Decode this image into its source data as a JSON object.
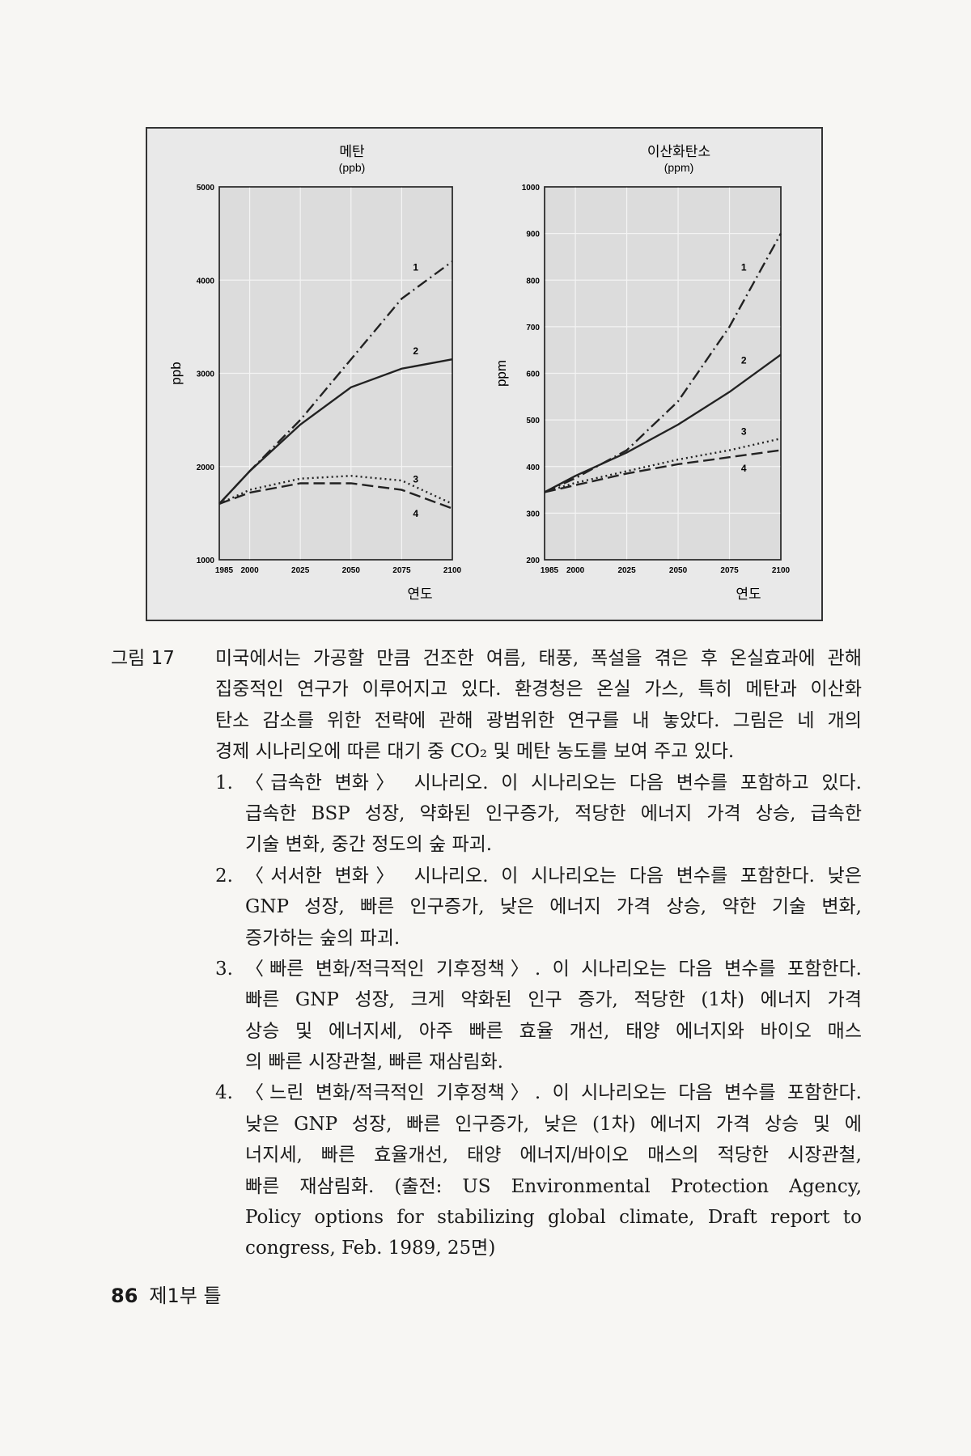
{
  "chart_data": [
    {
      "type": "line",
      "title": "메탄",
      "subtitle": "(ppb)",
      "ylabel": "ppb",
      "xlabel": "연도",
      "x": [
        1985,
        2000,
        2025,
        2050,
        2075,
        2100
      ],
      "xlim": [
        1985,
        2100
      ],
      "xticks": [
        1985,
        2000,
        2025,
        2050,
        2075,
        2100
      ],
      "ylim": [
        1000,
        5000
      ],
      "yticks": [
        1000,
        2000,
        3000,
        4000,
        5000
      ],
      "grid": true,
      "series": [
        {
          "name": "1",
          "color": "#222222",
          "dash": "dashdot",
          "values": [
            1600,
            1950,
            2500,
            3150,
            3800,
            4200
          ]
        },
        {
          "name": "2",
          "color": "#222222",
          "dash": "solid",
          "values": [
            1600,
            1950,
            2450,
            2850,
            3050,
            3150
          ]
        },
        {
          "name": "3",
          "color": "#222222",
          "dash": "dotted",
          "values": [
            1600,
            1750,
            1870,
            1900,
            1850,
            1600
          ]
        },
        {
          "name": "4",
          "color": "#222222",
          "dash": "dashed",
          "values": [
            1600,
            1720,
            1820,
            1820,
            1750,
            1550
          ]
        }
      ]
    },
    {
      "type": "line",
      "title": "이산화탄소",
      "subtitle": "(ppm)",
      "ylabel": "ppm",
      "xlabel": "연도",
      "x": [
        1985,
        2000,
        2025,
        2050,
        2075,
        2100
      ],
      "xlim": [
        1985,
        2100
      ],
      "xticks": [
        1985,
        2000,
        2025,
        2050,
        2075,
        2100
      ],
      "ylim": [
        200,
        1000
      ],
      "yticks": [
        200,
        300,
        400,
        500,
        600,
        700,
        800,
        900,
        1000
      ],
      "grid": true,
      "series": [
        {
          "name": "1",
          "color": "#222222",
          "dash": "dashdot",
          "values": [
            345,
            375,
            435,
            540,
            700,
            900
          ]
        },
        {
          "name": "2",
          "color": "#222222",
          "dash": "solid",
          "values": [
            345,
            380,
            430,
            490,
            560,
            640
          ]
        },
        {
          "name": "3",
          "color": "#222222",
          "dash": "dotted",
          "values": [
            345,
            365,
            390,
            415,
            435,
            460
          ]
        },
        {
          "name": "4",
          "color": "#222222",
          "dash": "dashed",
          "values": [
            345,
            360,
            385,
            405,
            420,
            435
          ]
        }
      ]
    }
  ],
  "caption": {
    "label": "그림 17",
    "intro": [
      "미국에서는 가공할 만큼 건조한 여름, 태풍, 폭설을 겪은 후 온실효과에 관해",
      "집중적인 연구가 이루어지고 있다. 환경청은 온실 가스, 특히 메탄과 이산화",
      "탄소 감소를 위한 전략에 관해 광범위한 연구를 내 놓았다. 그림은 네 개의",
      "경제 시나리오에 따른 대기 중 CO₂ 및 메탄 농도를 보여 주고 있다."
    ],
    "items": [
      {
        "number": "1.",
        "lines": [
          "〈급속한 변화〉 시나리오. 이 시나리오는 다음 변수를 포함하고 있다.",
          "급속한 BSP 성장, 약화된 인구증가, 적당한 에너지 가격 상승, 급속한",
          "기술 변화, 중간 정도의 숲 파괴."
        ]
      },
      {
        "number": "2.",
        "lines": [
          "〈서서한 변화〉 시나리오. 이 시나리오는 다음 변수를 포함한다. 낮은",
          "GNP 성장, 빠른 인구증가, 낮은 에너지 가격 상승, 약한 기술 변화,",
          "증가하는 숲의 파괴."
        ]
      },
      {
        "number": "3.",
        "lines": [
          "〈빠른 변화/적극적인 기후정책〉. 이 시나리오는 다음 변수를 포함한다.",
          "빠른 GNP 성장, 크게 약화된 인구 증가, 적당한 (1차) 에너지 가격",
          "상승 및 에너지세, 아주 빠른 효율 개선, 태양 에너지와 바이오 매스",
          "의 빠른 시장관철, 빠른 재삼림화."
        ]
      },
      {
        "number": "4.",
        "lines": [
          "〈느린 변화/적극적인 기후정책〉. 이 시나리오는 다음 변수를 포함한다.",
          "낮은 GNP 성장, 빠른 인구증가, 낮은 (1차) 에너지 가격 상승 및 에",
          "너지세, 빠른 효율개선, 태양 에너지/바이오 매스의 적당한 시장관철,",
          "빠른 재삼림화. (출전: US Environmental Protection Agency,",
          "Policy options for stabilizing global climate, Draft report to",
          "congress, Feb. 1989, 25면)"
        ]
      }
    ]
  },
  "footer": {
    "page_number": "86",
    "section": "제1부 틀"
  }
}
